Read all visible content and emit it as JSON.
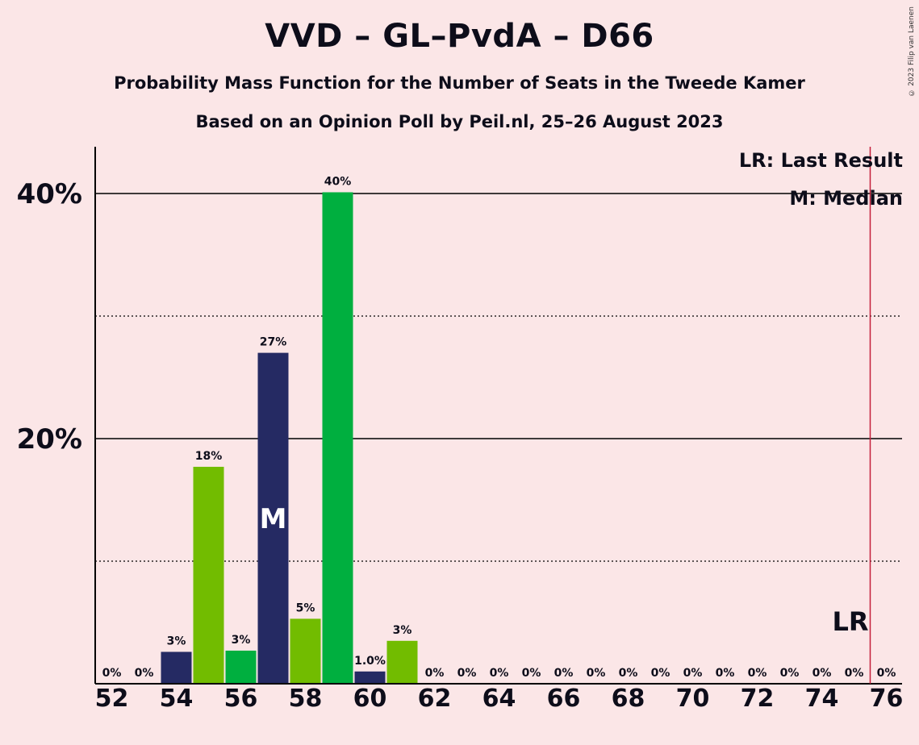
{
  "title": "VVD – GL–PvdA – D66",
  "subtitle": "Probability Mass Function for the Number of Seats in the Tweede Kamer",
  "subtitle2": "Based on an Opinion Poll by Peil.nl, 25–26 August 2023",
  "copyright": "© 2023 Filip van Laenen",
  "legend": {
    "lr": "LR: Last Result",
    "m": "M: Median"
  },
  "markers": {
    "median_label": "M",
    "last_result_label": "LR"
  },
  "colors": {
    "background": "#fbe6e7",
    "dark": "#252a63",
    "green": "#00af3f",
    "light_green": "#72bc00",
    "last_result_line": "#c41e3a"
  },
  "chart_data": {
    "type": "bar",
    "x": [
      52,
      53,
      54,
      55,
      56,
      57,
      58,
      59,
      60,
      61,
      62,
      63,
      64,
      65,
      66,
      67,
      68,
      69,
      70,
      71,
      72,
      73,
      74,
      75,
      76
    ],
    "values": [
      0,
      0,
      2.6,
      17.7,
      2.7,
      27.0,
      5.3,
      40.1,
      1.0,
      3.5,
      0,
      0,
      0,
      0,
      0,
      0,
      0,
      0,
      0,
      0,
      0,
      0,
      0,
      0,
      0
    ],
    "labels": [
      "0%",
      "0%",
      "3%",
      "18%",
      "3%",
      "27%",
      "5%",
      "40%",
      "1.0%",
      "3%",
      "0%",
      "0%",
      "0%",
      "0%",
      "0%",
      "0%",
      "0%",
      "0%",
      "0%",
      "0%",
      "0%",
      "0%",
      "0%",
      "0%",
      "0%"
    ],
    "bar_colors": [
      "#252a63",
      "#00af3f",
      "#252a63",
      "#72bc00",
      "#00af3f",
      "#252a63",
      "#72bc00",
      "#00af3f",
      "#252a63",
      "#72bc00",
      "#00af3f",
      "#252a63",
      "#72bc00",
      "#00af3f",
      "#252a63",
      "#72bc00",
      "#00af3f",
      "#252a63",
      "#72bc00",
      "#00af3f",
      "#252a63",
      "#72bc00",
      "#00af3f",
      "#252a63",
      "#72bc00"
    ],
    "x_ticks": [
      52,
      54,
      56,
      58,
      60,
      62,
      64,
      66,
      68,
      70,
      72,
      74,
      76
    ],
    "x_tick_labels": [
      "52",
      "54",
      "56",
      "58",
      "60",
      "62",
      "64",
      "66",
      "68",
      "70",
      "72",
      "74",
      "76"
    ],
    "y_ticks_major": [
      20,
      40
    ],
    "y_tick_labels": [
      "20%",
      "40%"
    ],
    "y_ticks_minor": [
      10,
      30
    ],
    "ylim": [
      0,
      44
    ],
    "median": 57,
    "last_result": 75.5
  }
}
